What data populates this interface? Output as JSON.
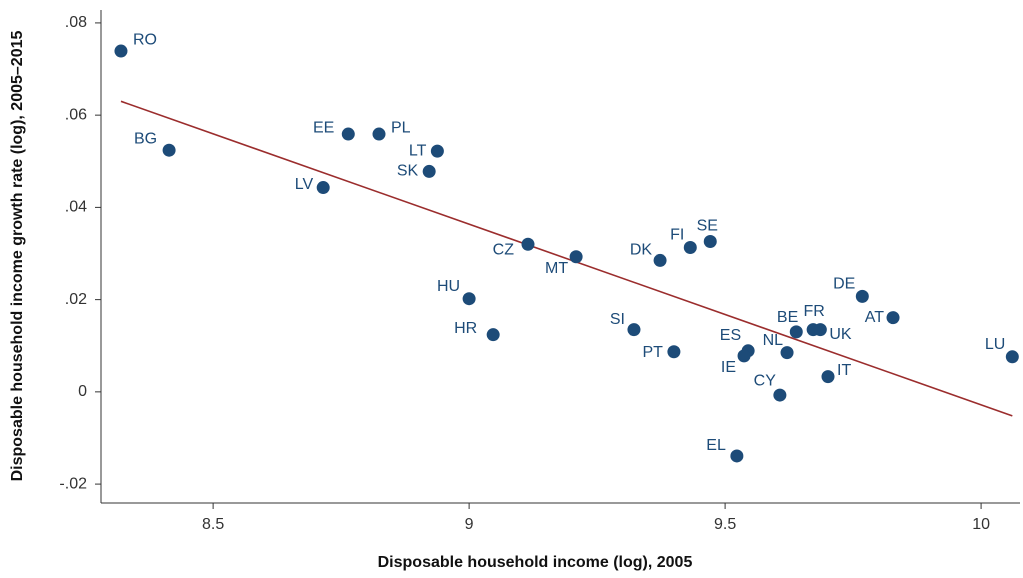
{
  "chart_data": {
    "type": "scatter",
    "x_label": "Disposable household income (log), 2005",
    "y_label": "Disposable household income growth rate (log), 2005–2015",
    "xlim": [
      8.281,
      10.076
    ],
    "ylim": [
      -0.0241,
      0.0828
    ],
    "xticks": [
      8.5,
      9,
      9.5,
      10
    ],
    "yticks": [
      {
        "value": -0.02,
        "label": "-.02"
      },
      {
        "value": 0,
        "label": "0"
      },
      {
        "value": 0.02,
        "label": ".02"
      },
      {
        "value": 0.04,
        "label": ".04"
      },
      {
        "value": 0.06,
        "label": ".06"
      },
      {
        "value": 0.08,
        "label": ".08"
      }
    ],
    "grid": false,
    "color": "#1d4b78",
    "labels": [
      "RO",
      "BG",
      "EE",
      "PL",
      "LT",
      "SK",
      "LV",
      "CZ",
      "MT",
      "HU",
      "HR",
      "DK",
      "FI",
      "SE",
      "SI",
      "PT",
      "DE",
      "AT",
      "BE",
      "FR",
      "UK",
      "ES",
      "IE",
      "NL",
      "IT",
      "CY",
      "EL",
      "LU"
    ],
    "x": [
      8.32,
      8.414,
      8.764,
      8.824,
      8.938,
      8.922,
      8.715,
      9.115,
      9.209,
      9.0,
      9.047,
      9.373,
      9.432,
      9.471,
      9.322,
      9.4,
      9.768,
      9.828,
      9.639,
      9.672,
      9.686,
      9.545,
      9.537,
      9.621,
      9.701,
      9.607,
      9.523,
      10.061
    ],
    "y": [
      0.0739,
      0.0524,
      0.0559,
      0.0559,
      0.0522,
      0.0478,
      0.0443,
      0.032,
      0.0293,
      0.0202,
      0.0124,
      0.0285,
      0.0313,
      0.0326,
      0.0135,
      0.0087,
      0.0207,
      0.0161,
      0.013,
      0.0135,
      0.0135,
      0.0089,
      0.0078,
      0.0085,
      0.0033,
      -0.0007,
      -0.0139,
      0.0076
    ],
    "trendline": {
      "x": [
        8.32,
        10.061
      ],
      "y": [
        0.063,
        -0.0052
      ],
      "color": "#9b2d2d"
    }
  }
}
